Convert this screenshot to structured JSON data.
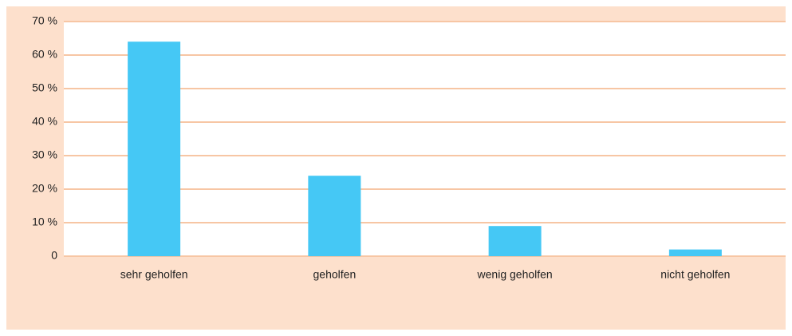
{
  "chart_data": {
    "type": "bar",
    "categories": [
      "sehr geholfen",
      "geholfen",
      "wenig geholfen",
      "nicht geholfen"
    ],
    "values": [
      64,
      24,
      9,
      2
    ],
    "color": "#45c8f5",
    "ylim": [
      0,
      70
    ],
    "yticks": [
      0,
      {
        "value": 10,
        "label": "10 %"
      },
      {
        "value": 20,
        "label": "20 %"
      },
      {
        "value": 30,
        "label": "30 %"
      },
      {
        "value": 40,
        "label": "40 %"
      },
      {
        "value": 50,
        "label": "50 %"
      },
      {
        "value": 60,
        "label": "60 %"
      },
      {
        "value": 70,
        "label": "70 %"
      }
    ],
    "grid": true
  }
}
